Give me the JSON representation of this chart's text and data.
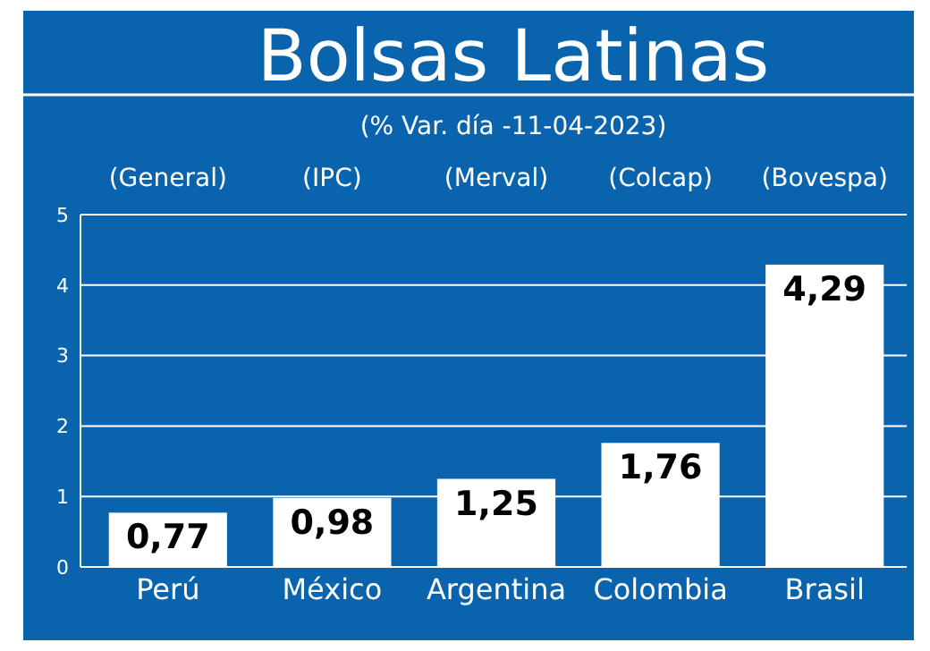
{
  "chart_data": {
    "type": "bar",
    "title": "Bolsas Latinas",
    "subtitle": "(% Var. día -11-04-2023)",
    "annotations": [
      "(General)",
      "(IPC)",
      "(Merval)",
      "(Colcap)",
      "(Bovespa)"
    ],
    "categories": [
      "Perú",
      "México",
      "Argentina",
      "Colombia",
      "Brasil"
    ],
    "values": [
      0.77,
      0.98,
      1.25,
      1.76,
      4.29
    ],
    "value_labels": [
      "0,77",
      "0,98",
      "1,25",
      "1,76",
      "4,29"
    ],
    "color": "#ffffff",
    "ylim": [
      0,
      5
    ],
    "yticks": [
      0,
      1,
      2,
      3,
      4,
      5
    ],
    "grid": "y"
  }
}
